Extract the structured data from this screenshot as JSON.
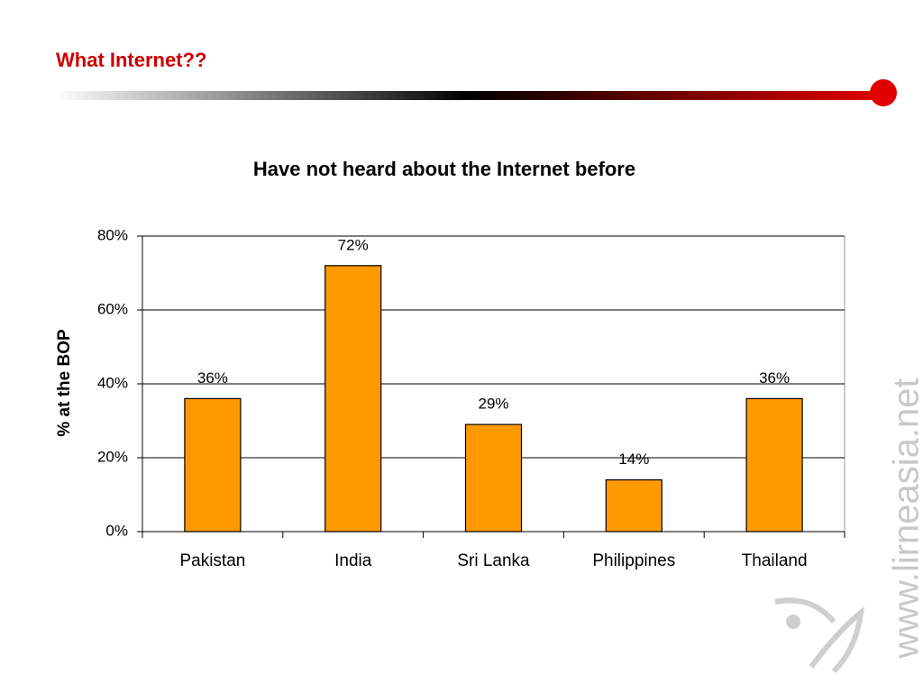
{
  "header": {
    "title": "What Internet??"
  },
  "watermark": "www.lirneasia.net",
  "chart_data": {
    "type": "bar",
    "title": "Have not heard about the Internet before",
    "y_label": "% at the BOP",
    "categories": [
      "Pakistan",
      "India",
      "Sri Lanka",
      "Philippines",
      "Thailand"
    ],
    "values": [
      36,
      72,
      29,
      14,
      36
    ],
    "value_labels": [
      "36%",
      "72%",
      "29%",
      "14%",
      "36%"
    ],
    "color": "#ff9900",
    "ylim": [
      0,
      80
    ],
    "yticks": [
      {
        "value": 0,
        "label": "0%"
      },
      {
        "value": 20,
        "label": "20%"
      },
      {
        "value": 40,
        "label": "40%"
      },
      {
        "value": 60,
        "label": "60%"
      },
      {
        "value": 80,
        "label": "80%"
      }
    ],
    "grid": true
  }
}
